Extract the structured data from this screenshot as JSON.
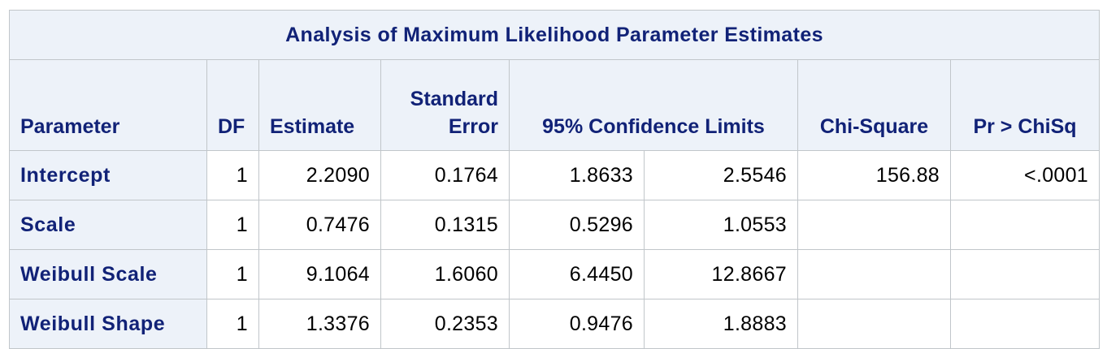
{
  "table": {
    "title": "Analysis of Maximum Likelihood Parameter Estimates",
    "headers": {
      "parameter": "Parameter",
      "df": "DF",
      "estimate": "Estimate",
      "std_error_line1": "Standard",
      "std_error_line2": "Error",
      "confidence": "95% Confidence Limits",
      "chi_square": "Chi-Square",
      "pr_chisq": "Pr > ChiSq"
    },
    "rows": [
      {
        "parameter": "Intercept",
        "df": "1",
        "estimate": "2.2090",
        "std_error": "0.1764",
        "lower": "1.8633",
        "upper": "2.5546",
        "chi_square": "156.88",
        "pr_chisq": "<.0001"
      },
      {
        "parameter": "Scale",
        "df": "1",
        "estimate": "0.7476",
        "std_error": "0.1315",
        "lower": "0.5296",
        "upper": "1.0553",
        "chi_square": "",
        "pr_chisq": ""
      },
      {
        "parameter": "Weibull Scale",
        "df": "1",
        "estimate": "9.1064",
        "std_error": "1.6060",
        "lower": "6.4450",
        "upper": "12.8667",
        "chi_square": "",
        "pr_chisq": ""
      },
      {
        "parameter": "Weibull Shape",
        "df": "1",
        "estimate": "1.3376",
        "std_error": "0.2353",
        "lower": "0.9476",
        "upper": "1.8883",
        "chi_square": "",
        "pr_chisq": ""
      }
    ]
  }
}
